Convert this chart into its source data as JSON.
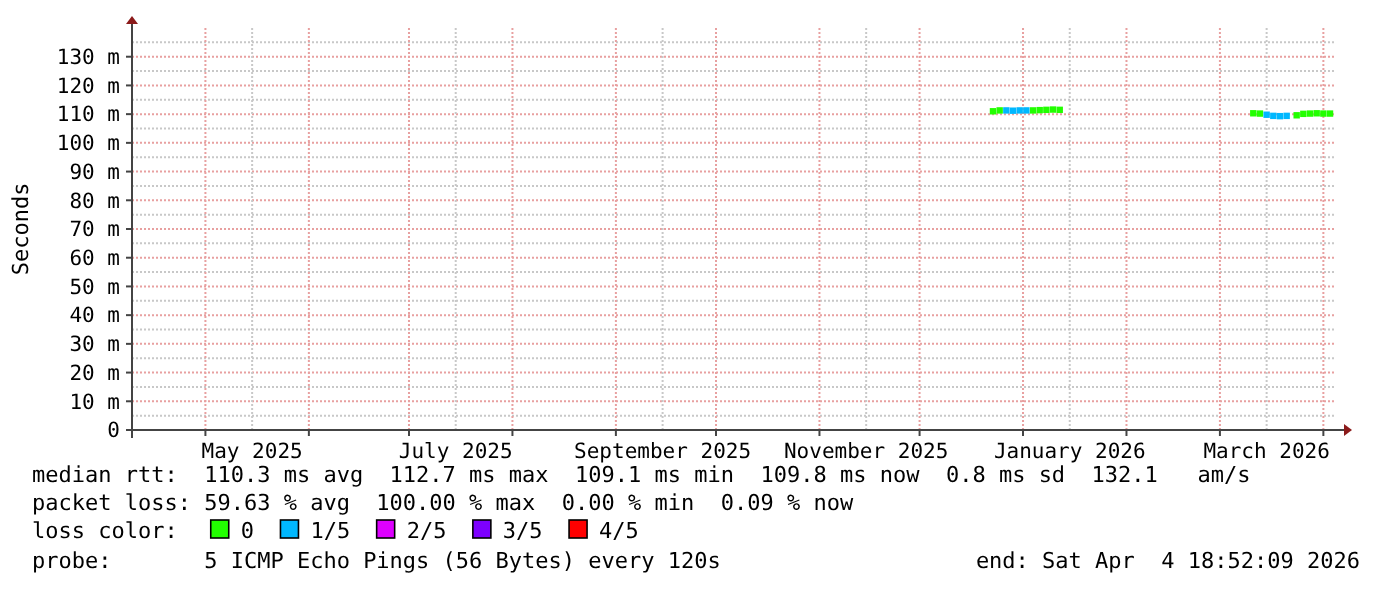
{
  "chart_data": {
    "type": "scatter",
    "marker": "square",
    "ylabel": "Seconds",
    "xlim": [
      "2025-04-09",
      "2026-04-04T18:52"
    ],
    "ylim": [
      0,
      140
    ],
    "yticks": [
      0,
      {
        "value": 5,
        "label": null
      },
      {
        "value": 10,
        "label": "10 m"
      },
      {
        "value": 15,
        "label": null
      },
      {
        "value": 20,
        "label": "20 m"
      },
      {
        "value": 25,
        "label": null
      },
      {
        "value": 30,
        "label": "30 m"
      },
      {
        "value": 35,
        "label": null
      },
      {
        "value": 40,
        "label": "40 m"
      },
      {
        "value": 45,
        "label": null
      },
      {
        "value": 50,
        "label": "50 m"
      },
      {
        "value": 55,
        "label": null
      },
      {
        "value": 60,
        "label": "60 m"
      },
      {
        "value": 65,
        "label": null
      },
      {
        "value": 70,
        "label": "70 m"
      },
      {
        "value": 75,
        "label": null
      },
      {
        "value": 80,
        "label": "80 m"
      },
      {
        "value": 85,
        "label": null
      },
      {
        "value": 90,
        "label": "90 m"
      },
      {
        "value": 95,
        "label": null
      },
      {
        "value": 100,
        "label": "100 m"
      },
      {
        "value": 105,
        "label": null
      },
      {
        "value": 110,
        "label": "110 m"
      },
      {
        "value": 115,
        "label": null
      },
      {
        "value": 120,
        "label": "120 m"
      },
      {
        "value": 125,
        "label": null
      },
      {
        "value": 130,
        "label": "130 m"
      },
      {
        "value": 135,
        "label": null
      }
    ],
    "xticks": [
      {
        "value": "2025-05-01",
        "label": null
      },
      {
        "value": "2025-05-15",
        "label": "May 2025"
      },
      {
        "value": "2025-06-01",
        "label": null
      },
      {
        "value": "2025-07-01",
        "label": null
      },
      {
        "value": "2025-07-15",
        "label": "July 2025"
      },
      {
        "value": "2025-08-01",
        "label": null
      },
      {
        "value": "2025-09-01",
        "label": null
      },
      {
        "value": "2025-09-15",
        "label": "September 2025"
      },
      {
        "value": "2025-10-01",
        "label": null
      },
      {
        "value": "2025-11-01",
        "label": null
      },
      {
        "value": "2025-11-15",
        "label": "November 2025"
      },
      {
        "value": "2025-12-01",
        "label": null
      },
      {
        "value": "2026-01-01",
        "label": null
      },
      {
        "value": "2026-01-15",
        "label": "January 2026"
      },
      {
        "value": "2026-02-01",
        "label": null
      },
      {
        "value": "2026-03-01",
        "label": null
      },
      {
        "value": "2026-03-15",
        "label": "March 2026"
      },
      {
        "value": "2026-04-01",
        "label": null
      }
    ],
    "grid": true,
    "legend": "bottom",
    "legend_title": "loss color:",
    "series": [
      {
        "name": "0",
        "color": "#22ff00",
        "x": [
          "2025-12-23",
          "2025-12-25",
          "2026-01-04",
          "2026-01-06",
          "2026-01-08",
          "2026-01-10",
          "2026-01-12",
          "2026-03-11",
          "2026-03-13",
          "2026-03-24",
          "2026-03-26",
          "2026-03-28",
          "2026-03-30",
          "2026-04-01",
          "2026-04-03"
        ],
        "values": [
          111.0,
          111.3,
          111.3,
          111.4,
          111.5,
          111.6,
          111.5,
          110.3,
          110.2,
          109.6,
          110.1,
          110.2,
          110.3,
          110.2,
          110.2
        ]
      },
      {
        "name": "1/5",
        "color": "#00b8ff",
        "x": [
          "2025-12-27",
          "2025-12-29",
          "2025-12-31",
          "2026-01-02",
          "2026-03-15",
          "2026-03-17",
          "2026-03-19",
          "2026-03-21"
        ],
        "values": [
          111.3,
          111.2,
          111.3,
          111.3,
          109.8,
          109.4,
          109.3,
          109.4
        ]
      },
      {
        "name": "2/5",
        "color": "#dd00ff"
      },
      {
        "name": "3/5",
        "color": "#7d00ff"
      },
      {
        "name": "4/5",
        "color": "#ff0000"
      }
    ],
    "annotations": [
      "median rtt:  110.3 ms avg  112.7 ms max  109.1 ms min  109.8 ms now  0.8 ms sd  132.1   am/s",
      "packet loss: 59.63 % avg  100.00 % max  0.00 % min  0.09 % now",
      "probe:       5 ICMP Echo Pings (56 Bytes) every 120s",
      "end: Sat Apr  4 18:52:09 2026"
    ]
  }
}
